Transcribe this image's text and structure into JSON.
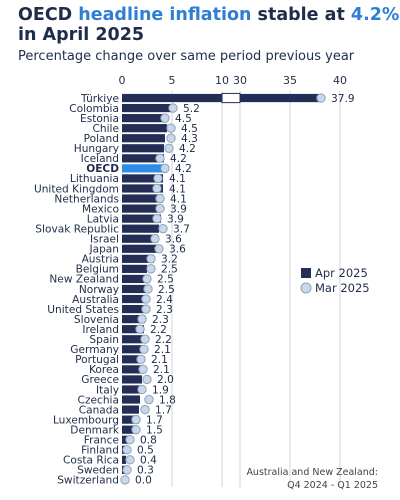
{
  "title": {
    "prefix": "OECD ",
    "highlight1": "headline inflation",
    "middle": " stable at ",
    "highlight2": "4.2%",
    "line2": "in April 2025"
  },
  "subtitle": "Percentage change over same period previous year",
  "footnote": {
    "line1": "Australia and New Zealand:",
    "line2": "Q4 2024 - Q1 2025"
  },
  "colors": {
    "apr_bar": "#232d56",
    "oecd_bar": "#2e8be6",
    "mar_dot_fill": "#c6d8ea",
    "mar_dot_stroke": "#8fa2b8",
    "grid": "#c9c9c9"
  },
  "chart_data": {
    "type": "bar",
    "orientation": "horizontal",
    "axis_breaks": true,
    "x_ticks": [
      "0",
      "5",
      "10",
      "30",
      "35",
      "40"
    ],
    "x_segment1": [
      0,
      10
    ],
    "x_segment2": [
      30,
      40
    ],
    "legend": {
      "position": "right",
      "items": [
        "Apr 2025",
        "Mar 2025"
      ]
    },
    "categories": [
      "Türkiye",
      "Colombia",
      "Estonia",
      "Chile",
      "Poland",
      "Hungary",
      "Iceland",
      "OECD",
      "Lithuania",
      "United Kingdom",
      "Netherlands",
      "Mexico",
      "Latvia",
      "Slovak Republic",
      "Israel",
      "Japan",
      "Austria",
      "Belgium",
      "New Zealand",
      "Norway",
      "Australia",
      "United States",
      "Slovenia",
      "Ireland",
      "Spain",
      "Germany",
      "Portugal",
      "Korea",
      "Greece",
      "Italy",
      "Czechia",
      "Canada",
      "Luxembourg",
      "Denmark",
      "France",
      "Finland",
      "Costa Rica",
      "Sweden",
      "Switzerland"
    ],
    "value_labels": [
      "37.9",
      "5.2",
      "4.5",
      "4.5",
      "4.3",
      "4.2",
      "4.2",
      "4.2",
      "4.1",
      "4.1",
      "4.1",
      "3.9",
      "3.9",
      "3.7",
      "3.6",
      "3.6",
      "3.2",
      "2.5",
      "2.5",
      "2.5",
      "2.4",
      "2.3",
      "2.3",
      "2.2",
      "2.2",
      "2.1",
      "2.1",
      "2.1",
      "2.0",
      "1.9",
      "1.8",
      "1.7",
      "1.7",
      "1.5",
      "0.8",
      "0.5",
      "0.4",
      "0.3",
      "0.0"
    ],
    "series": [
      {
        "name": "Apr 2025",
        "values": [
          37.9,
          5.2,
          4.5,
          4.5,
          4.3,
          4.2,
          4.2,
          4.2,
          4.1,
          4.1,
          4.1,
          3.9,
          3.9,
          3.7,
          3.6,
          3.6,
          3.2,
          2.5,
          2.5,
          2.5,
          2.4,
          2.3,
          2.3,
          2.2,
          2.2,
          2.1,
          2.1,
          2.1,
          2.0,
          1.9,
          1.8,
          1.7,
          1.7,
          1.5,
          0.8,
          0.5,
          0.4,
          0.3,
          0.0
        ]
      },
      {
        "name": "Mar 2025",
        "values": [
          38.1,
          5.1,
          4.3,
          4.9,
          4.9,
          4.7,
          3.8,
          4.3,
          3.6,
          3.5,
          3.8,
          3.8,
          3.5,
          4.1,
          3.3,
          3.7,
          2.9,
          2.9,
          2.5,
          2.6,
          2.4,
          2.4,
          2.0,
          1.8,
          2.3,
          2.2,
          1.9,
          2.1,
          2.5,
          2.0,
          2.7,
          2.3,
          1.4,
          1.4,
          0.8,
          0.5,
          0.8,
          0.5,
          0.3
        ]
      }
    ]
  }
}
